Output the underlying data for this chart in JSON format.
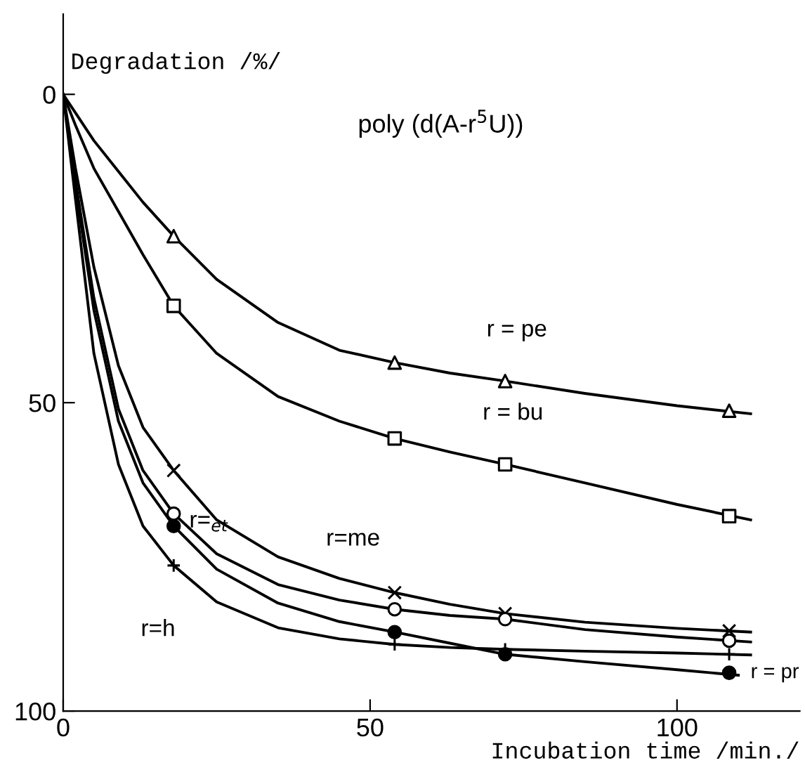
{
  "chart_data": {
    "type": "line",
    "title": "poly (d(A-r$^{5}$U))",
    "xlabel": "Incubation time /min./",
    "ylabel": "Degradation /%/",
    "xlim": [
      0,
      120
    ],
    "xticks": [
      0,
      50,
      100
    ],
    "ylim": [
      100,
      -13
    ],
    "yticks": [
      0,
      50,
      100
    ],
    "grid": false,
    "line_style": "solid",
    "series": [
      {
        "color": "#000000",
        "x": [
          0,
          2,
          5,
          9,
          13,
          18,
          25,
          35,
          45,
          54,
          63,
          72,
          85,
          100,
          112
        ],
        "values": [
          0,
          3,
          7.5,
          12.5,
          17.5,
          23,
          30,
          37,
          41.5,
          43.5,
          45.2,
          46.5,
          48.5,
          50.5,
          51.8
        ]
      },
      {
        "color": "#000000",
        "x": [
          0,
          2,
          5,
          9,
          13,
          18,
          25,
          35,
          45,
          54,
          63,
          72,
          85,
          100,
          112
        ],
        "values": [
          0,
          5,
          12,
          19,
          26,
          34.3,
          42,
          49,
          53,
          55.8,
          58,
          60,
          63,
          66.5,
          69
        ]
      },
      {
        "color": "#000000",
        "x": [
          0,
          2,
          5,
          9,
          13,
          18,
          25,
          35,
          45,
          54,
          63,
          72,
          85,
          100,
          112
        ],
        "values": [
          0,
          12,
          28,
          44,
          54,
          61,
          69,
          75,
          78.5,
          80.8,
          82.7,
          84.2,
          85.6,
          86.6,
          87.2
        ]
      },
      {
        "color": "#000000",
        "x": [
          0,
          2,
          5,
          9,
          13,
          18,
          25,
          35,
          45,
          54,
          63,
          72,
          85,
          100,
          112
        ],
        "values": [
          0,
          14,
          33,
          51,
          61,
          68,
          74.5,
          79.5,
          82,
          83.5,
          84.5,
          85.1,
          86.8,
          88,
          88.8
        ]
      },
      {
        "color": "#000000",
        "x": [
          0,
          2,
          5,
          9,
          13,
          18,
          25,
          35,
          45,
          54,
          63,
          72,
          85,
          100,
          110
        ],
        "values": [
          0,
          15,
          35,
          53,
          63,
          70,
          77,
          82.5,
          85.5,
          87.2,
          89,
          90.8,
          92,
          93.3,
          94.2
        ]
      },
      {
        "color": "#000000",
        "x": [
          0,
          2,
          5,
          9,
          13,
          18,
          25,
          35,
          45,
          54,
          63,
          72,
          85,
          100,
          112
        ],
        "values": [
          0,
          17,
          42,
          60,
          70,
          76.4,
          82.3,
          86.5,
          88.3,
          89.2,
          89.7,
          90,
          90.3,
          90.6,
          90.9
        ]
      },
      {
        "type": "scatter",
        "color": "#000000",
        "marker": "triangle",
        "x": [
          18,
          54,
          72,
          108.5
        ],
        "values": [
          23,
          43.5,
          46.5,
          51.3
        ]
      },
      {
        "type": "scatter",
        "color": "#000000",
        "marker": "square",
        "x": [
          18,
          54,
          72,
          108.5
        ],
        "values": [
          34.3,
          55.8,
          60,
          68.4
        ]
      },
      {
        "type": "scatter",
        "color": "#000000",
        "marker": "cross",
        "x": [
          18,
          54,
          72,
          108.5
        ],
        "values": [
          61,
          80.8,
          84.2,
          87
        ]
      },
      {
        "type": "scatter",
        "color": "#000000",
        "marker": "circle",
        "x": [
          18,
          54,
          72,
          108.5
        ],
        "values": [
          68,
          83.5,
          85.1,
          88.6
        ]
      },
      {
        "type": "scatter",
        "color": "#000000",
        "marker": "circle",
        "x": [
          18,
          54,
          72,
          108.5
        ],
        "values": [
          70,
          87.2,
          90.8,
          93.8
        ]
      },
      {
        "type": "scatter",
        "color": "#000000",
        "marker": "cross",
        "x": [
          18,
          54,
          72,
          108.5
        ],
        "values": [
          76.4,
          89.2,
          90,
          90.8
        ]
      }
    ],
    "annotations": [
      {
        "text": "r = pe",
        "x": 72,
        "y": 46.5
      },
      {
        "text": "r = bu",
        "x": 72,
        "y": 60
      },
      {
        "text": "r=$_{et}$",
        "x": 18,
        "y": 68
      },
      {
        "text": "r=me",
        "x": 45,
        "y": 78.5
      },
      {
        "text": "r=h",
        "x": 18,
        "y": 76.4
      },
      {
        "text": "r = pr",
        "x": 108.5,
        "y": 93.8
      }
    ]
  }
}
